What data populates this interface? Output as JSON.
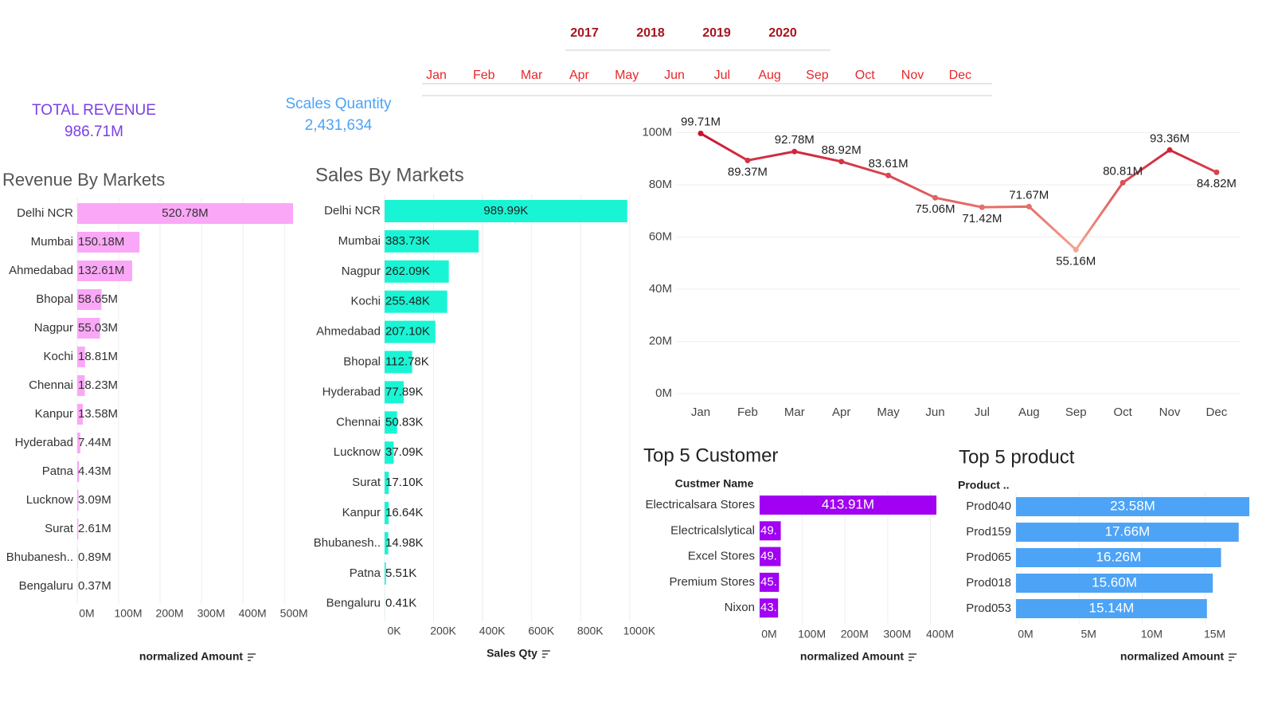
{
  "filters": {
    "years": [
      "2017",
      "2018",
      "2019",
      "2020"
    ],
    "months": [
      "Jan",
      "Feb",
      "Mar",
      "Apr",
      "May",
      "Jun",
      "Jul",
      "Aug",
      "Sep",
      "Oct",
      "Nov",
      "Dec"
    ]
  },
  "kpis": [
    {
      "label": "TOTAL REVENUE",
      "value": "986.71M"
    },
    {
      "label": "Scales Quantity",
      "value": "2,431,634"
    }
  ],
  "chart_data": [
    {
      "type": "barh",
      "title": "Revenue By Markets",
      "x_label": "normalized Amount",
      "color": "#fba7f7",
      "categories": [
        "Delhi NCR",
        "Mumbai",
        "Ahmedabad",
        "Bhopal",
        "Nagpur",
        "Kochi",
        "Chennai",
        "Kanpur",
        "Hyderabad",
        "Patna",
        "Lucknow",
        "Surat",
        "Bhubanesh..",
        "Bengaluru"
      ],
      "values": [
        520.78,
        150.18,
        132.61,
        58.65,
        55.03,
        18.81,
        18.23,
        13.58,
        7.44,
        4.43,
        3.09,
        2.61,
        0.89,
        0.37
      ],
      "value_labels": [
        "520.78M",
        "150.18M",
        "132.61M",
        "58.65M",
        "55.03M",
        "18.81M",
        "18.23M",
        "13.58M",
        "7.44M",
        "4.43M",
        "3.09M",
        "2.61M",
        "0.89M",
        "0.37M"
      ],
      "xlim": [
        0,
        540
      ],
      "xticks": [
        {
          "value": 0,
          "label": "0M"
        },
        {
          "value": 100,
          "label": "100M"
        },
        {
          "value": 200,
          "label": "200M"
        },
        {
          "value": 300,
          "label": "300M"
        },
        {
          "value": 400,
          "label": "400M"
        },
        {
          "value": 500,
          "label": "500M"
        }
      ],
      "grid": true
    },
    {
      "type": "barh",
      "title": "Sales By Markets",
      "x_label": "Sales Qty",
      "color": "#19f5d4",
      "categories": [
        "Delhi NCR",
        "Mumbai",
        "Nagpur",
        "Kochi",
        "Ahmedabad",
        "Bhopal",
        "Hyderabad",
        "Chennai",
        "Lucknow",
        "Surat",
        "Kanpur",
        "Bhubanesh..",
        "Patna",
        "Bengaluru"
      ],
      "values": [
        989.99,
        383.73,
        262.09,
        255.48,
        207.1,
        112.78,
        77.89,
        50.83,
        37.09,
        17.1,
        16.64,
        14.98,
        5.51,
        0.41
      ],
      "value_labels": [
        "989.99K",
        "383.73K",
        "262.09K",
        "255.48K",
        "207.10K",
        "112.78K",
        "77.89K",
        "50.83K",
        "37.09K",
        "17.10K",
        "16.64K",
        "14.98K",
        "5.51K",
        "0.41K"
      ],
      "xlim": [
        0,
        1020
      ],
      "xticks": [
        {
          "value": 0,
          "label": "0K"
        },
        {
          "value": 200,
          "label": "200K"
        },
        {
          "value": 400,
          "label": "400K"
        },
        {
          "value": 600,
          "label": "600K"
        },
        {
          "value": 800,
          "label": "800K"
        },
        {
          "value": 1000,
          "label": "1000K"
        }
      ],
      "grid": true
    },
    {
      "type": "line",
      "color_range": [
        "#f6a58c",
        "#c8102e"
      ],
      "categories": [
        "Jan",
        "Feb",
        "Mar",
        "Apr",
        "May",
        "Jun",
        "Jul",
        "Aug",
        "Sep",
        "Oct",
        "Nov",
        "Dec"
      ],
      "values": [
        99.71,
        89.37,
        92.78,
        88.92,
        83.61,
        75.06,
        71.42,
        71.67,
        55.16,
        80.81,
        93.36,
        84.82
      ],
      "value_labels": [
        "99.71M",
        "89.37M",
        "92.78M",
        "88.92M",
        "83.61M",
        "75.06M",
        "71.42M",
        "71.67M",
        "55.16M",
        "80.81M",
        "93.36M",
        "84.82M"
      ],
      "ylim": [
        0,
        102
      ],
      "yticks": [
        {
          "value": 0,
          "label": "0M"
        },
        {
          "value": 20,
          "label": "20M"
        },
        {
          "value": 40,
          "label": "40M"
        },
        {
          "value": 60,
          "label": "60M"
        },
        {
          "value": 80,
          "label": "80M"
        },
        {
          "value": 100,
          "label": "100M"
        }
      ],
      "grid": true
    },
    {
      "type": "barh",
      "title": "Top 5 Customer",
      "y_label": "Custmer Name",
      "x_label": "normalized Amount",
      "color": "#a100f2",
      "categories": [
        "Electricalsara Stores",
        "Electricalslytical",
        "Excel Stores",
        "Premium Stores",
        "Nixon"
      ],
      "values": [
        413.91,
        49.5,
        49.3,
        45.4,
        43.2
      ],
      "value_labels": [
        "413.91M",
        "49.",
        "49.",
        "45.",
        "43."
      ],
      "xlim": [
        0,
        440
      ],
      "xticks": [
        {
          "value": 0,
          "label": "0M"
        },
        {
          "value": 100,
          "label": "100M"
        },
        {
          "value": 200,
          "label": "200M"
        },
        {
          "value": 300,
          "label": "300M"
        },
        {
          "value": 400,
          "label": "400M"
        }
      ],
      "grid": true
    },
    {
      "type": "barh",
      "title": "Top 5 product",
      "y_label": "Product ..",
      "x_label": "normalized Amount",
      "color": "#4da3f5",
      "categories": [
        "Prod040",
        "Prod159",
        "Prod065",
        "Prod018",
        "Prod053"
      ],
      "values": [
        23.58,
        17.66,
        16.26,
        15.6,
        15.14
      ],
      "value_labels": [
        "23.58M",
        "17.66M",
        "16.26M",
        "15.60M",
        "15.14M"
      ],
      "xlim": [
        0,
        18.5
      ],
      "xticks": [
        {
          "value": 0,
          "label": "0M"
        },
        {
          "value": 5,
          "label": "5M"
        },
        {
          "value": 10,
          "label": "10M"
        },
        {
          "value": 15,
          "label": "15M"
        }
      ],
      "grid": true
    }
  ]
}
